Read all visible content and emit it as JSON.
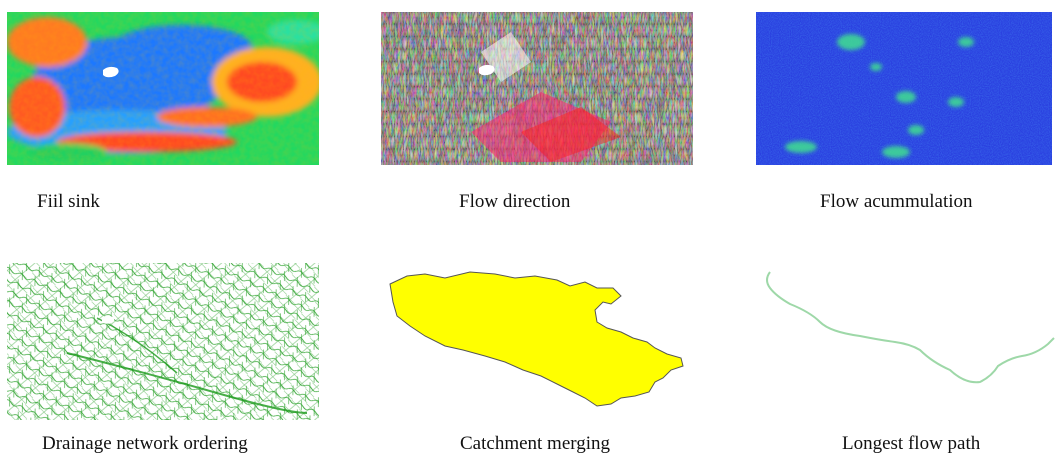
{
  "figure": {
    "panels": [
      {
        "id": "fill-sink",
        "caption": "Fiil sink",
        "kind": "elevation-raster"
      },
      {
        "id": "flow-direction",
        "caption": "Flow direction",
        "kind": "direction-raster"
      },
      {
        "id": "flow-accumulation",
        "caption": "Flow acummulation",
        "kind": "accumulation-raster"
      },
      {
        "id": "drainage-network",
        "caption": "Drainage network ordering",
        "kind": "stream-lines"
      },
      {
        "id": "catchment-merging",
        "caption": "Catchment merging",
        "kind": "polygon"
      },
      {
        "id": "longest-flow-path",
        "caption": "Longest flow path",
        "kind": "polyline"
      }
    ],
    "colors": {
      "elevation_low": "#2060ff",
      "elevation_mid": "#20e060",
      "elevation_high": "#ff4020",
      "accumulation_bg": "#2a40e0",
      "accumulation_high": "#40e090",
      "stream": "#1a9a1a",
      "catchment_fill": "#ffff00",
      "catchment_outline": "#555555",
      "flow_path": "#9ed8a8"
    }
  }
}
